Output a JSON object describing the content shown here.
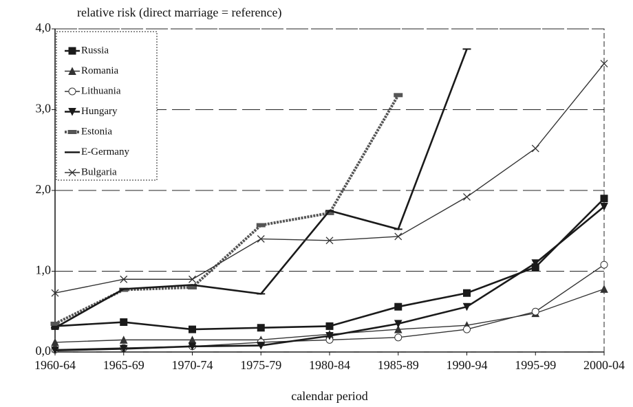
{
  "chart_data": {
    "type": "line",
    "y_label": "relative risk (direct marriage = reference)",
    "x_label": "calendar period",
    "categories": [
      "1960-64",
      "1965-69",
      "1970-74",
      "1975-79",
      "1980-84",
      "1985-89",
      "1990-94",
      "1995-99",
      "2000-04"
    ],
    "ylim": [
      0,
      4
    ],
    "yticks": [
      {
        "value": 0,
        "label": "0,0"
      },
      {
        "value": 1,
        "label": "1,0"
      },
      {
        "value": 2,
        "label": "2,0"
      },
      {
        "value": 3,
        "label": "3,0"
      },
      {
        "value": 4,
        "label": "4,0"
      }
    ],
    "grid": true,
    "legend": "upper left",
    "series": [
      {
        "name": "Russia",
        "color": "#1a1a1a",
        "marker": "square",
        "values": [
          0.32,
          0.37,
          0.28,
          0.3,
          0.32,
          0.56,
          0.73,
          1.05,
          1.9
        ]
      },
      {
        "name": "Romania",
        "color": "#333333",
        "marker": "triangle",
        "values": [
          0.12,
          0.15,
          0.15,
          0.15,
          0.22,
          0.28,
          0.33,
          0.48,
          0.78
        ]
      },
      {
        "name": "Lithuania",
        "color": "#333333",
        "marker": "circle",
        "values": [
          0.03,
          0.05,
          0.07,
          0.12,
          0.15,
          0.18,
          0.28,
          0.5,
          1.08
        ]
      },
      {
        "name": "Hungary",
        "color": "#1a1a1a",
        "marker": "triangle-down",
        "values": [
          0.02,
          0.04,
          0.07,
          0.08,
          0.2,
          0.35,
          0.56,
          1.1,
          1.8
        ]
      },
      {
        "name": "Estonia",
        "color": "#555555",
        "marker": "dash",
        "values": [
          0.35,
          0.77,
          0.8,
          1.57,
          1.72,
          3.18,
          null,
          null,
          null
        ]
      },
      {
        "name": "E-Germany",
        "color": "#1a1a1a",
        "marker": "bar",
        "values": [
          0.3,
          0.78,
          0.83,
          0.72,
          1.75,
          1.52,
          3.75,
          null,
          null
        ]
      },
      {
        "name": "Bulgaria",
        "color": "#333333",
        "marker": "cross",
        "values": [
          0.73,
          0.9,
          0.9,
          1.4,
          1.38,
          1.43,
          1.92,
          2.52,
          3.57
        ]
      }
    ]
  }
}
